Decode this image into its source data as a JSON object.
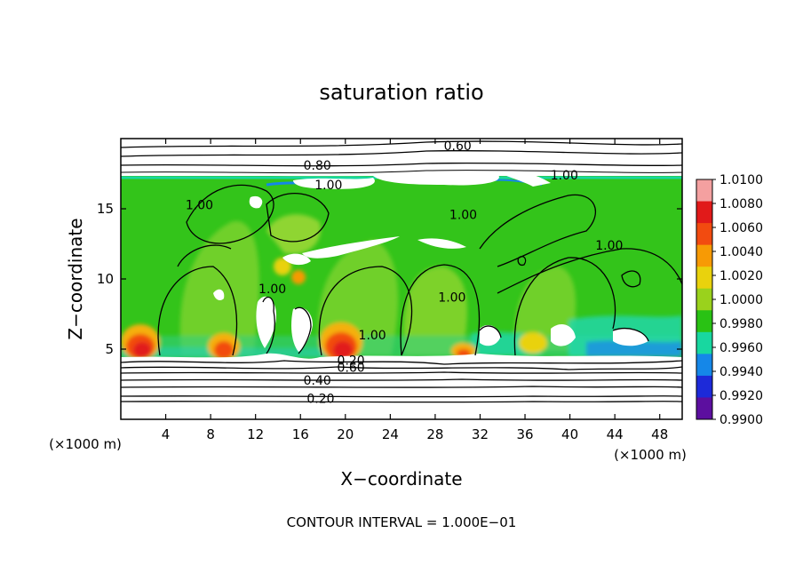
{
  "chart_data": {
    "type": "heatmap",
    "title": "saturation ratio",
    "xlabel": "X−coordinate",
    "ylabel": "Z−coordinate",
    "x_unit_label": "(×1000 m)",
    "y_unit_label": "(×1000 m)",
    "xlim": [
      0,
      50
    ],
    "ylim": [
      0,
      20
    ],
    "x_ticks": [
      4,
      8,
      12,
      16,
      20,
      24,
      28,
      32,
      36,
      40,
      44,
      48
    ],
    "y_ticks": [
      5,
      10,
      15
    ],
    "footnote": "CONTOUR INTERVAL = 1.000E−01",
    "colorbar": {
      "labels": [
        "1.0100",
        "1.0080",
        "1.0060",
        "1.0040",
        "1.0020",
        "1.0000",
        "0.9980",
        "0.9960",
        "0.9940",
        "0.9920",
        "0.9900"
      ],
      "colors": [
        "#f4a0a0",
        "#e11a1a",
        "#f24b10",
        "#f79a05",
        "#e9d20d",
        "#9ad21c",
        "#29c214",
        "#18d7a0",
        "#1587e8",
        "#1d2ad9",
        "#5c0f9f"
      ]
    },
    "contour_labels": [
      {
        "text": "0.60",
        "x": 30,
        "z": 19.5
      },
      {
        "text": "0.80",
        "x": 17.5,
        "z": 18.1
      },
      {
        "text": "1.00",
        "x": 18.5,
        "z": 16.7
      },
      {
        "text": "1.00",
        "x": 39.5,
        "z": 17.4
      },
      {
        "text": "1.00",
        "x": 7,
        "z": 15.3
      },
      {
        "text": "1.00",
        "x": 30.5,
        "z": 14.6
      },
      {
        "text": "1.00",
        "x": 43.5,
        "z": 12.4
      },
      {
        "text": "1.00",
        "x": 13.5,
        "z": 9.3
      },
      {
        "text": "1.00",
        "x": 29.5,
        "z": 8.7
      },
      {
        "text": "1.00",
        "x": 22.4,
        "z": 6.0
      },
      {
        "text": "0.20",
        "x": 20.5,
        "z": 4.2
      },
      {
        "text": "0.60",
        "x": 20.5,
        "z": 3.7
      },
      {
        "text": "0.40",
        "x": 17.5,
        "z": 2.8
      },
      {
        "text": "0.20",
        "x": 17.8,
        "z": 1.5
      }
    ]
  }
}
